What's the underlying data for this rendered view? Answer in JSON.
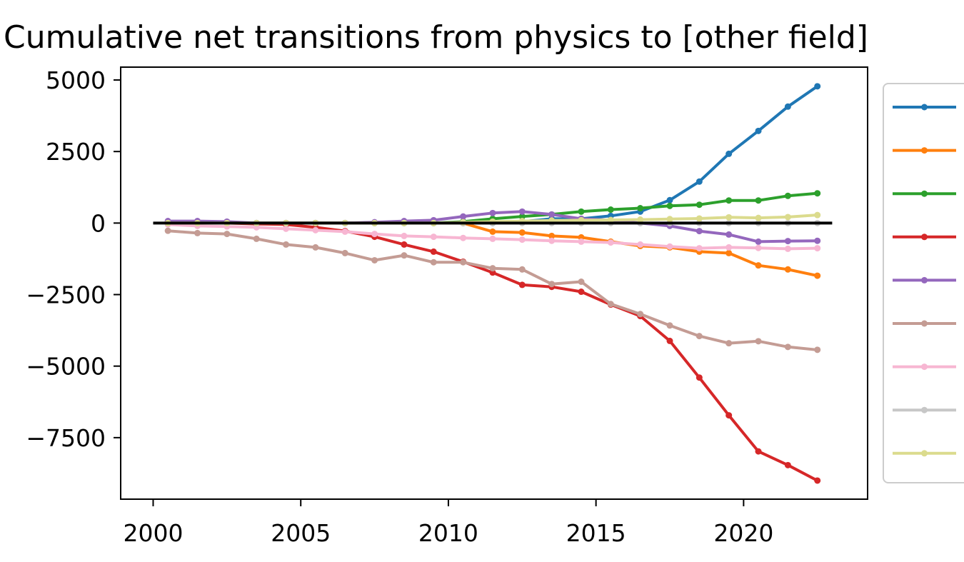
{
  "chart_data": {
    "type": "line",
    "title": "Cumulative net transitions from physics to [other field]",
    "xlabel": "",
    "ylabel": "",
    "xlim": [
      1998.9,
      2024.2
    ],
    "ylim": [
      -9650,
      5450
    ],
    "xticks": [
      2000,
      2005,
      2010,
      2015,
      2020
    ],
    "yticks": [
      5000,
      2500,
      0,
      -2500,
      -5000,
      -7500
    ],
    "xtick_labels": [
      "2000",
      "2005",
      "2010",
      "2015",
      "2020"
    ],
    "ytick_labels": [
      "5000",
      "2500",
      "0",
      "−2500",
      "−5000",
      "−7500"
    ],
    "grid": false,
    "legend": "right, outside plot; entry labels cut off at image edge",
    "reference_line": {
      "y": 0,
      "x_from": 2000,
      "x_to": 2023,
      "color": "#000000"
    },
    "x": [
      2000.5,
      2001.5,
      2002.5,
      2003.5,
      2004.5,
      2005.5,
      2006.5,
      2007.5,
      2008.5,
      2009.5,
      2010.5,
      2011.5,
      2012.5,
      2013.5,
      2014.5,
      2015.5,
      2016.5,
      2017.5,
      2018.5,
      2019.5,
      2020.5,
      2021.5,
      2022.5
    ],
    "series": [
      {
        "color": "#1f77b4",
        "values": [
          0,
          0,
          0,
          0,
          0,
          0,
          0,
          0,
          0,
          0,
          0,
          0,
          50,
          150,
          150,
          250,
          400,
          800,
          1450,
          2420,
          3220,
          4070,
          4780
        ]
      },
      {
        "color": "#ff7f0e",
        "values": [
          0,
          0,
          0,
          0,
          0,
          0,
          0,
          0,
          0,
          0,
          0,
          -300,
          -330,
          -450,
          -500,
          -650,
          -800,
          -850,
          -1000,
          -1050,
          -1480,
          -1620,
          -1840
        ]
      },
      {
        "color": "#2ca02c",
        "values": [
          0,
          0,
          0,
          0,
          0,
          0,
          0,
          0,
          0,
          0,
          50,
          150,
          230,
          300,
          400,
          470,
          520,
          600,
          640,
          790,
          790,
          950,
          1040
        ]
      },
      {
        "color": "#d62728",
        "values": [
          0,
          0,
          0,
          -30,
          -50,
          -150,
          -280,
          -480,
          -750,
          -1000,
          -1350,
          -1730,
          -2160,
          -2230,
          -2400,
          -2850,
          -3250,
          -4120,
          -5400,
          -6720,
          -7980,
          -8460,
          -9000
        ]
      },
      {
        "color": "#9467bd",
        "values": [
          70,
          70,
          50,
          0,
          0,
          0,
          0,
          30,
          70,
          100,
          230,
          350,
          400,
          300,
          150,
          100,
          0,
          -100,
          -280,
          -400,
          -650,
          -630,
          -620
        ]
      },
      {
        "color": "#c49c94",
        "values": [
          -270,
          -350,
          -380,
          -550,
          -750,
          -850,
          -1050,
          -1300,
          -1130,
          -1370,
          -1370,
          -1580,
          -1620,
          -2130,
          -2050,
          -2830,
          -3180,
          -3580,
          -3950,
          -4200,
          -4130,
          -4330,
          -4430
        ]
      },
      {
        "color": "#f7b6d2",
        "values": [
          -50,
          -100,
          -120,
          -150,
          -200,
          -250,
          -300,
          -380,
          -450,
          -480,
          -520,
          -550,
          -580,
          -620,
          -650,
          -680,
          -750,
          -820,
          -880,
          -850,
          -870,
          -900,
          -880
        ]
      },
      {
        "color": "#c7c7c7",
        "values": [
          0,
          0,
          0,
          0,
          0,
          0,
          0,
          0,
          0,
          0,
          0,
          0,
          0,
          0,
          0,
          0,
          0,
          0,
          0,
          0,
          0,
          0,
          0
        ]
      },
      {
        "color": "#dbdb8d",
        "values": [
          0,
          0,
          0,
          0,
          0,
          0,
          0,
          0,
          0,
          0,
          30,
          50,
          70,
          90,
          100,
          110,
          120,
          140,
          160,
          200,
          180,
          210,
          280
        ]
      }
    ]
  }
}
